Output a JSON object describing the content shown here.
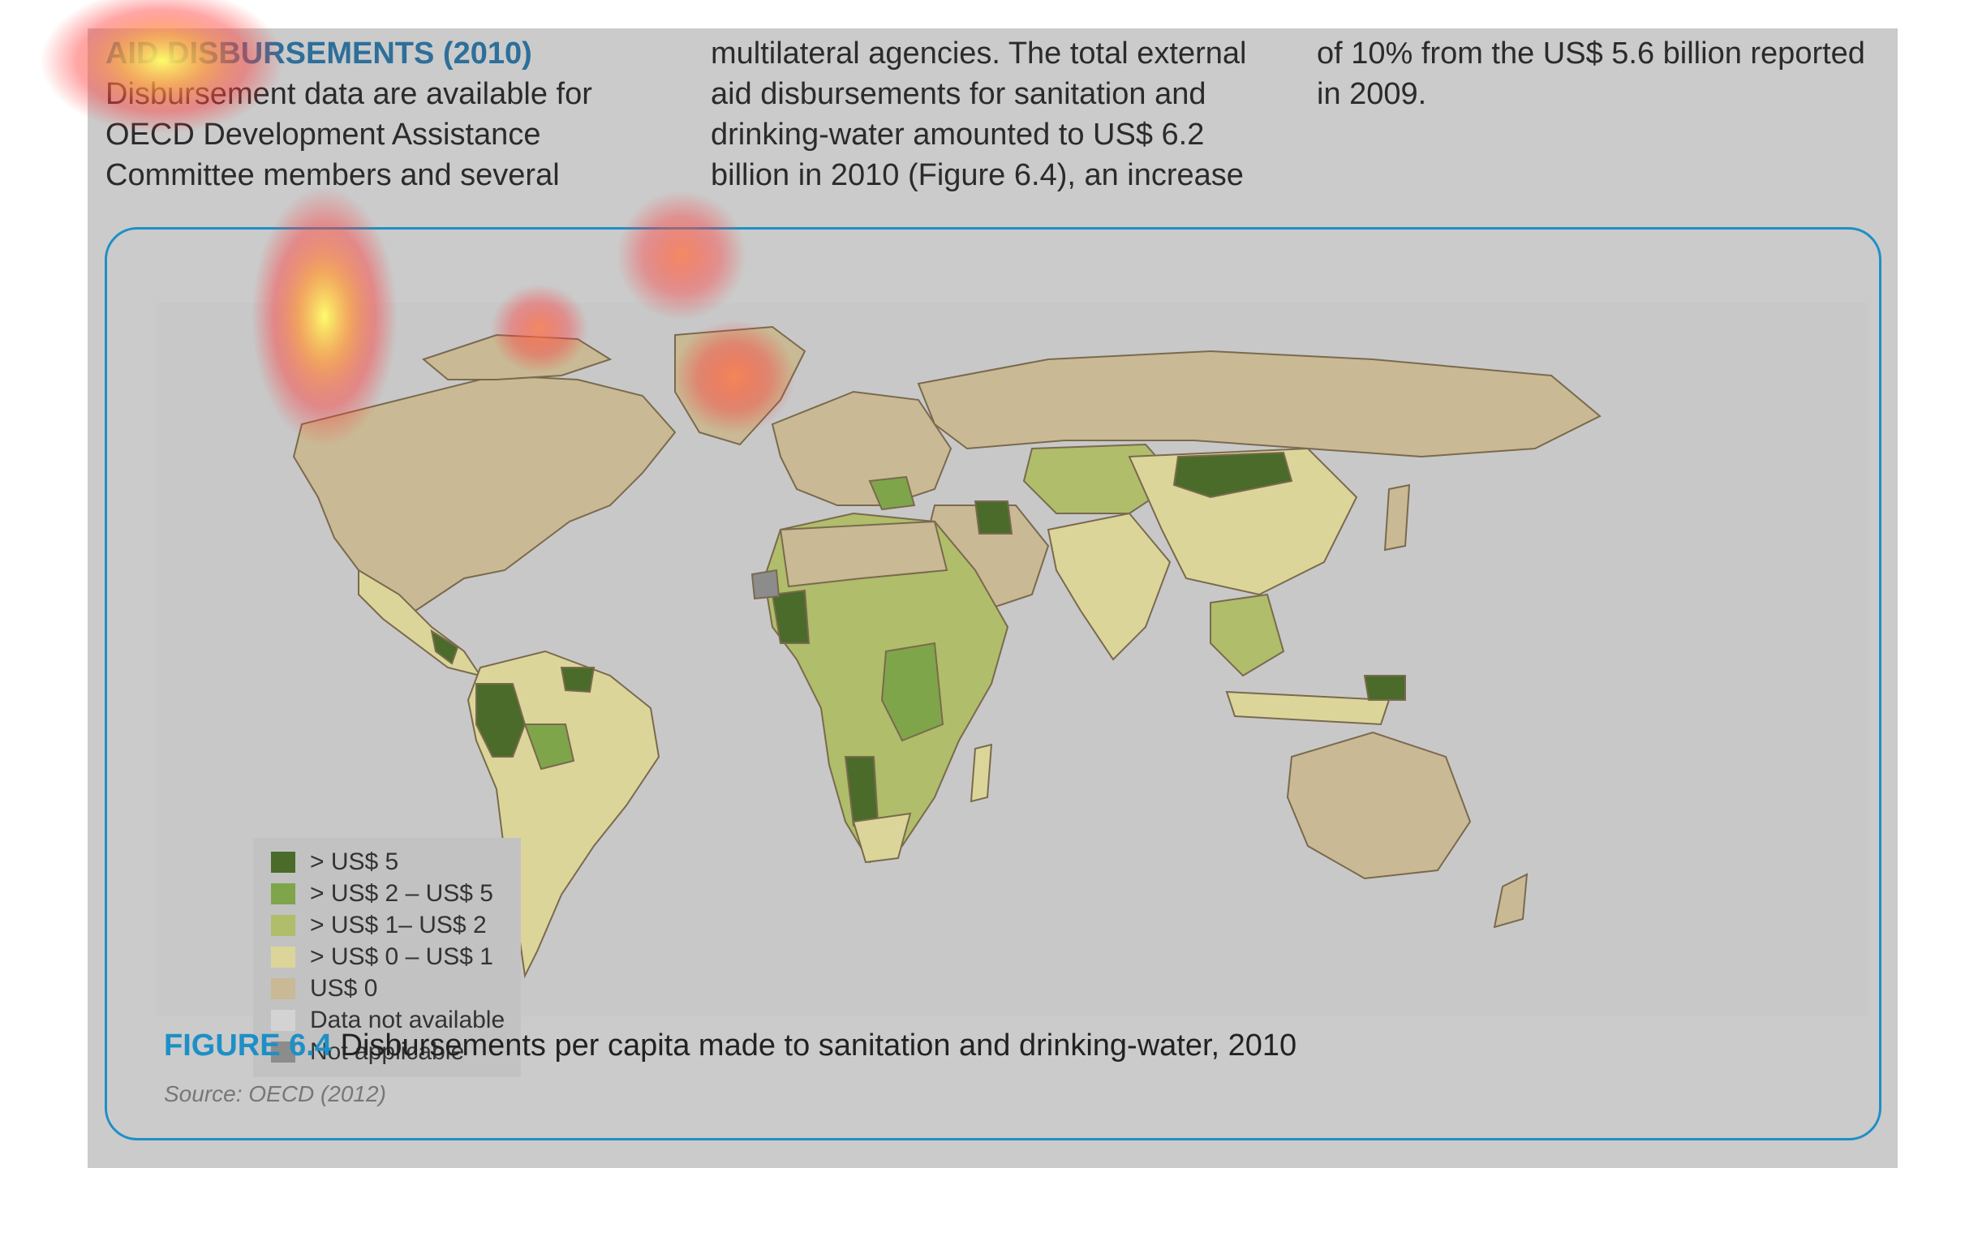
{
  "text": {
    "section_title": "AID DISBURSEMENTS (2010)",
    "col1_body": "Disbursement data are available for OECD Development Assistance Committee members and several",
    "col2_body": "multilateral agencies. The total external aid disbursements for sanitation and drinking-water amounted to US$ 6.2 billion in 2010 (Figure 6.4), an increase",
    "col3_body": "of 10% from the US$ 5.6 billion reported in 2009."
  },
  "figure": {
    "label": "FIGURE 6.4",
    "caption": "Disbursements per capita made to sanitation and drinking-water, 2010",
    "source": "Source: OECD (2012)"
  },
  "legend": {
    "items": [
      {
        "label": "> US$ 5",
        "color": "#4a6b2a"
      },
      {
        "label": "> US$ 2 – US$ 5",
        "color": "#7fa54a"
      },
      {
        "label": "> US$ 1– US$ 2",
        "color": "#b0bd6a"
      },
      {
        "label": "> US$ 0 – US$ 1",
        "color": "#dcd59a"
      },
      {
        "label": "US$ 0",
        "color": "#c9b994"
      },
      {
        "label": "Data not available",
        "color": "#d3d3d3"
      },
      {
        "label": "Not applicable",
        "color": "#8c8c8c"
      }
    ]
  },
  "colors": {
    "accent": "#1e8fc6",
    "title": "#2d6f9a",
    "page_bg": "#cbcbcb"
  }
}
